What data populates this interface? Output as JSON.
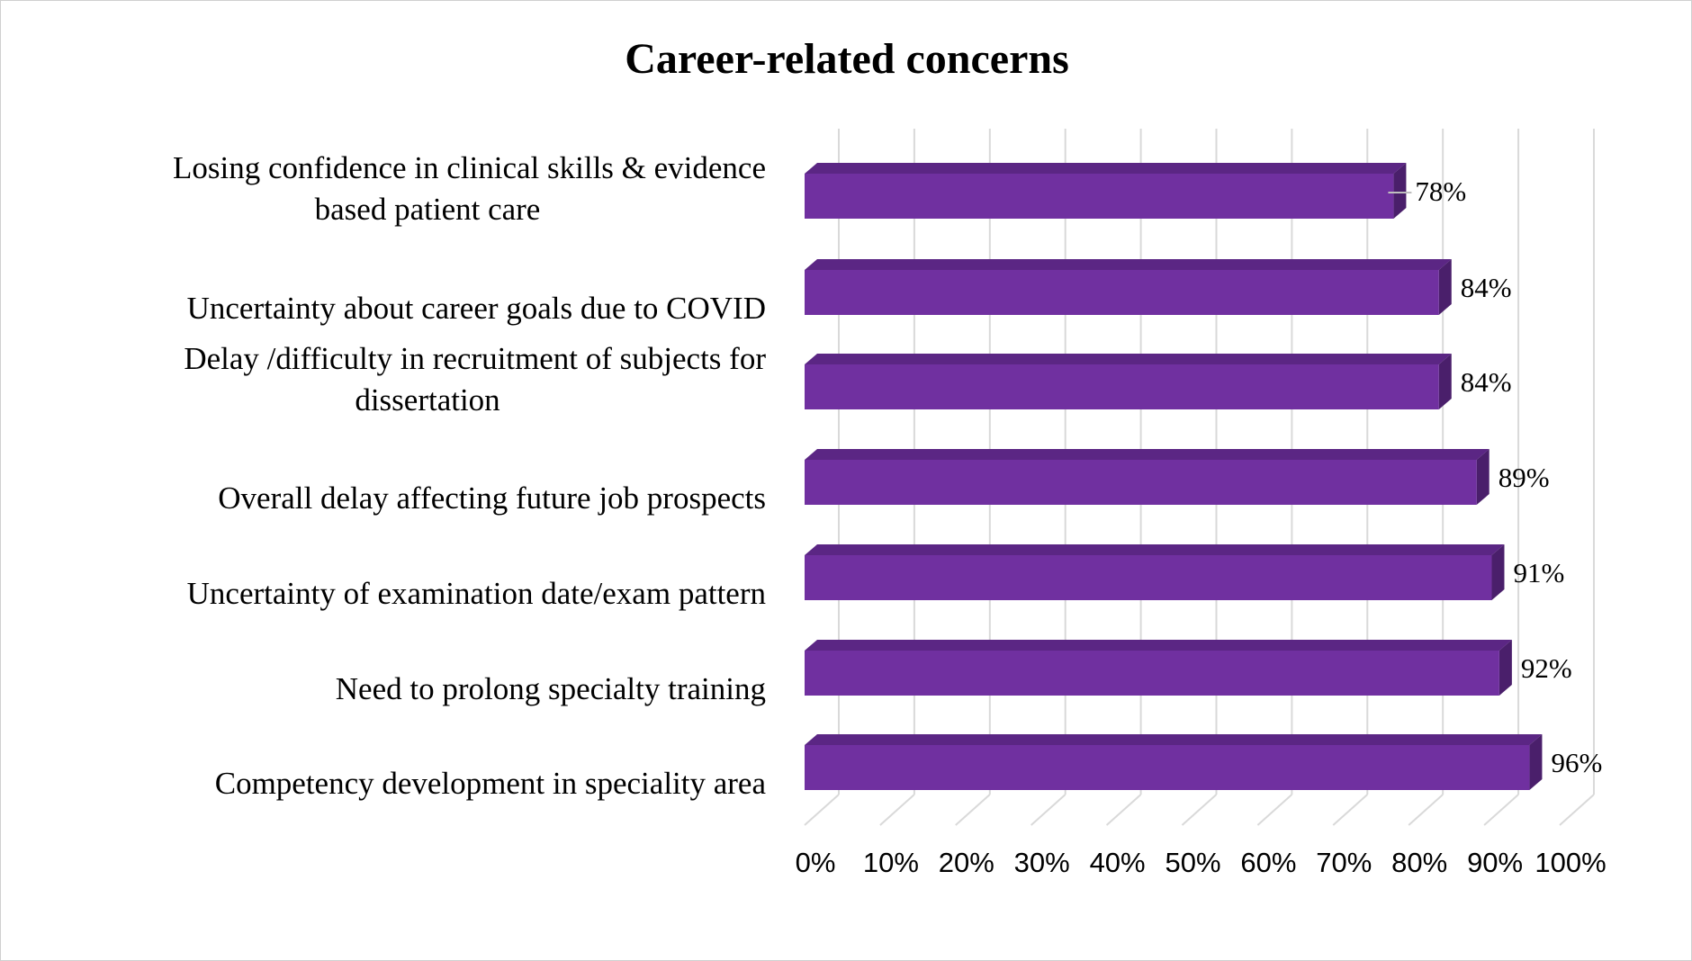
{
  "chart_data": {
    "type": "bar",
    "orientation": "horizontal",
    "style": "3d",
    "title": "Career-related  concerns",
    "categories": [
      "Losing confidence in clinical skills & evidence based patient care",
      "Uncertainty about  career goals due to COVID",
      "Delay /difficulty in recruitment of subjects for dissertation",
      "Overall delay affecting  future job prospects",
      "Uncertainty of examination date/exam pattern",
      "Need to prolong specialty training",
      "Competency development in speciality area"
    ],
    "category_lines": [
      [
        "Losing confidence in clinical skills & evidence",
        "based patient care"
      ],
      [
        "Uncertainty about  career goals due to COVID"
      ],
      [
        "Delay /difficulty in recruitment of subjects for",
        "dissertation"
      ],
      [
        "Overall delay affecting  future job prospects"
      ],
      [
        "Uncertainty of examination date/exam pattern"
      ],
      [
        "Need to prolong specialty training"
      ],
      [
        "Competency development in speciality area"
      ]
    ],
    "values": [
      78,
      84,
      84,
      89,
      91,
      92,
      96
    ],
    "data_labels": [
      "78%",
      "84%",
      "84%",
      "89%",
      "91%",
      "92%",
      "96%"
    ],
    "xlim": [
      0,
      100
    ],
    "x_ticks": [
      "0%",
      "10%",
      "20%",
      "30%",
      "40%",
      "50%",
      "60%",
      "70%",
      "80%",
      "90%",
      "100%"
    ],
    "grid": true,
    "legend": "none",
    "colors": {
      "bar_front": "#7030a0",
      "bar_top": "#5b2684",
      "bar_side": "#4a1f6b",
      "gridline": "#d9d9d9"
    }
  }
}
